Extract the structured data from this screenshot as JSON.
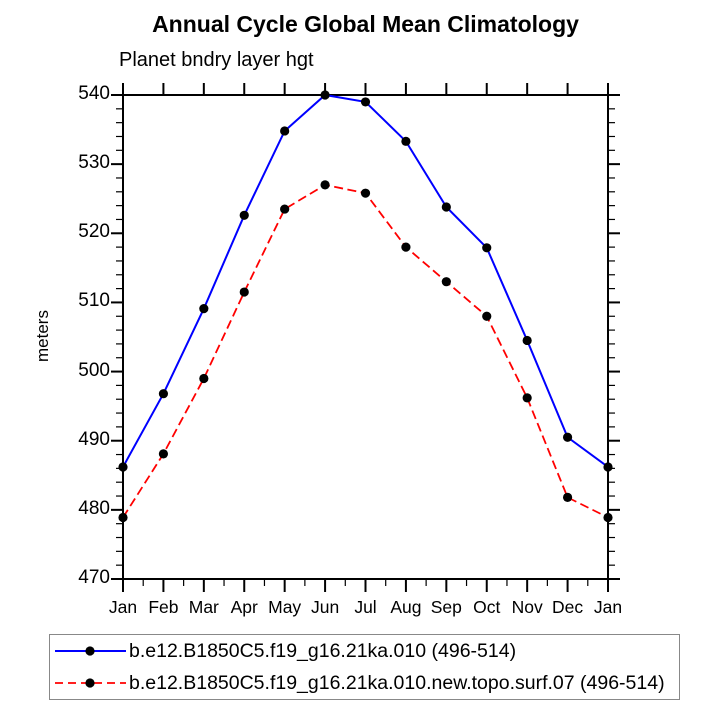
{
  "titles": {
    "main": "Annual Cycle Global Mean Climatology",
    "left_subtitle": "Planet bndry layer hgt"
  },
  "axes": {
    "y": {
      "label": "meters",
      "min": 470,
      "max": 540,
      "major_tick_step": 10,
      "minor_tick_step": 2,
      "major_tick_labels": [
        "470",
        "480",
        "490",
        "500",
        "510",
        "520",
        "530",
        "540"
      ]
    },
    "x": {
      "tick_labels": [
        "Jan",
        "Feb",
        "Mar",
        "Apr",
        "May",
        "Jun",
        "Jul",
        "Aug",
        "Sep",
        "Oct",
        "Nov",
        "Dec",
        "Jan"
      ]
    }
  },
  "chart_data": {
    "type": "line",
    "title": "Annual Cycle Global Mean Climatology",
    "subtitle": "Planet bndry layer hgt",
    "xlabel": "",
    "ylabel": "meters",
    "ylim": [
      470,
      540
    ],
    "y_major_step": 10,
    "y_minor_step": 2,
    "grid": false,
    "legend_position": "bottom-left-box",
    "categories": [
      "Jan",
      "Feb",
      "Mar",
      "Apr",
      "May",
      "Jun",
      "Jul",
      "Aug",
      "Sep",
      "Oct",
      "Nov",
      "Dec",
      "Jan"
    ],
    "series": [
      {
        "name": "b.e12.B1850C5.f19_g16.21ka.010 (496-514)",
        "color": "#0000ff",
        "line_style": "solid",
        "marker": "filled-circle",
        "marker_color": "#000000",
        "values": [
          486.2,
          496.8,
          509.1,
          522.6,
          534.8,
          540.0,
          539.0,
          533.3,
          523.8,
          517.9,
          504.5,
          490.5,
          486.2
        ]
      },
      {
        "name": "b.e12.B1850C5.f19_g16.21ka.010.new.topo.surf.07 (496-514)",
        "color": "#ff0000",
        "line_style": "dashed",
        "marker": "filled-circle",
        "marker_color": "#000000",
        "values": [
          478.9,
          488.1,
          499.0,
          511.5,
          523.5,
          527.0,
          525.8,
          518.0,
          513.0,
          508.0,
          496.2,
          481.8,
          478.9
        ]
      }
    ]
  },
  "style": {
    "axis_color": "#000000",
    "text_color": "#000000",
    "legend_border_color": "#888888",
    "background": "#ffffff"
  }
}
